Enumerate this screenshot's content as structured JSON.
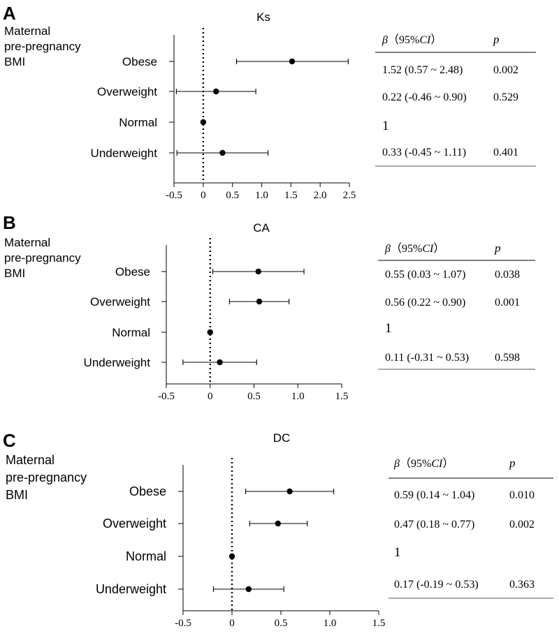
{
  "chart_data": [
    {
      "type": "forest",
      "panel_label": "A",
      "title": "Ks",
      "group_label_lines": [
        "Maternal",
        "pre-pregnancy",
        "BMI"
      ],
      "categories": [
        "Obese",
        "Overweight",
        "Normal",
        "Underweight"
      ],
      "estimates": [
        1.52,
        0.22,
        0,
        0.33
      ],
      "ci_low": [
        0.57,
        -0.46,
        null,
        -0.45
      ],
      "ci_high": [
        2.48,
        0.9,
        null,
        1.11
      ],
      "xlim": [
        -0.5,
        2.5
      ],
      "x_ticks": [
        "-0.5",
        "0",
        "0.5",
        "1.0",
        "1.5",
        "2.0",
        "2.5"
      ],
      "reference_line": 0,
      "table": {
        "beta_symbol": "β",
        "beta_ci_rest": "（95%",
        "ci_italic": "CI",
        "ci_close": "）",
        "p_header": "p",
        "rows": [
          {
            "beta_ci": "1.52 (0.57 ~ 2.48)",
            "p": "0.002"
          },
          {
            "beta_ci": "0.22 (-0.46 ~ 0.90)",
            "p": "0.529"
          },
          {
            "beta_ci": "1",
            "p": ""
          },
          {
            "beta_ci": "0.33 (-0.45 ~ 1.11)",
            "p": "0.401"
          }
        ]
      }
    },
    {
      "type": "forest",
      "panel_label": "B",
      "title": "CA",
      "group_label_lines": [
        "Maternal",
        "pre-pregnancy",
        "BMI"
      ],
      "categories": [
        "Obese",
        "Overweight",
        "Normal",
        "Underweight"
      ],
      "estimates": [
        0.55,
        0.56,
        0,
        0.11
      ],
      "ci_low": [
        0.03,
        0.22,
        null,
        -0.31
      ],
      "ci_high": [
        1.07,
        0.9,
        null,
        0.53
      ],
      "xlim": [
        -0.5,
        1.5
      ],
      "x_ticks": [
        "-0.5",
        "0",
        "0.5",
        "1.0",
        "1.5"
      ],
      "reference_line": 0,
      "table": {
        "beta_symbol": "β",
        "beta_ci_rest": "（95%",
        "ci_italic": "CI",
        "ci_close": "）",
        "p_header": "p",
        "rows": [
          {
            "beta_ci": "0.55 (0.03 ~ 1.07)",
            "p": "0.038"
          },
          {
            "beta_ci": "0.56 (0.22 ~ 0.90)",
            "p": "0.001"
          },
          {
            "beta_ci": "1",
            "p": ""
          },
          {
            "beta_ci": "0.11 (-0.31 ~ 0.53)",
            "p": "0.598"
          }
        ]
      }
    },
    {
      "type": "forest",
      "panel_label": "C",
      "title": "DC",
      "group_label_lines": [
        "Maternal",
        "pre-pregnancy",
        "BMI"
      ],
      "categories": [
        "Obese",
        "Overweight",
        "Normal",
        "Underweight"
      ],
      "estimates": [
        0.59,
        0.47,
        0,
        0.17
      ],
      "ci_low": [
        0.14,
        0.18,
        null,
        -0.19
      ],
      "ci_high": [
        1.04,
        0.77,
        null,
        0.53
      ],
      "xlim": [
        -0.5,
        1.5
      ],
      "x_ticks": [
        "-0.5",
        "0",
        "0.5",
        "1.0",
        "1.5"
      ],
      "reference_line": 0,
      "table": {
        "beta_symbol": "β",
        "beta_ci_rest": "（95%",
        "ci_italic": "CI",
        "ci_close": "）",
        "p_header": "p",
        "rows": [
          {
            "beta_ci": "0.59 (0.14 ~ 1.04)",
            "p": "0.010"
          },
          {
            "beta_ci": "0.47 (0.18 ~ 0.77)",
            "p": "0.002"
          },
          {
            "beta_ci": "1",
            "p": ""
          },
          {
            "beta_ci": "0.17 (-0.19 ~ 0.53)",
            "p": "0.363"
          }
        ]
      }
    }
  ]
}
